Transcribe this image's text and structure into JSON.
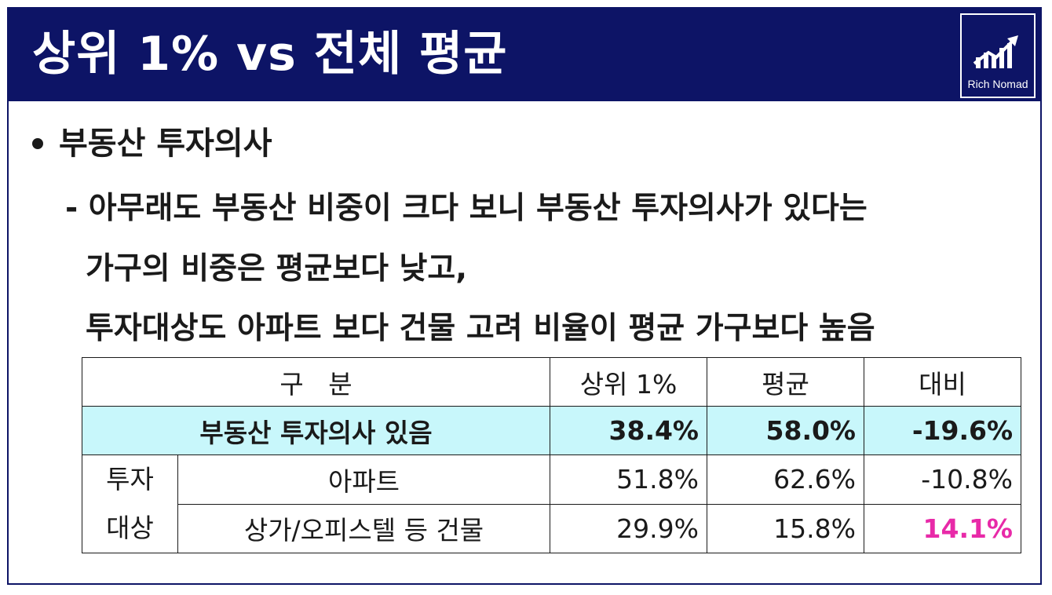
{
  "header": {
    "title": "상위 1% vs 전체 평균"
  },
  "logo": {
    "text": "Rich Nomad",
    "icon": "chart-arrow-icon"
  },
  "bullet": {
    "heading": "부동산 투자의사"
  },
  "body": {
    "line1": "- 아무래도 부동산 비중이 크다 보니 부동산 투자의사가 있다는",
    "line2": "가구의 비중은 평균보다 낮고,",
    "line3": "투자대상도 아파트 보다 건물 고려 비율이 평균 가구보다 높음"
  },
  "table": {
    "headers": [
      "구   분",
      "상위 1%",
      "평균",
      "대비"
    ],
    "highlight_row": {
      "label": "부동산 투자의사 있음",
      "top1": "38.4%",
      "avg": "58.0%",
      "diff": "-19.6%"
    },
    "group_label_line1": "투자",
    "group_label_line2": "대상",
    "rows": [
      {
        "label": "아파트",
        "top1": "51.8%",
        "avg": "62.6%",
        "diff": "-10.8%"
      },
      {
        "label": "상가/오피스텔 등 건물",
        "top1": "29.9%",
        "avg": "15.8%",
        "diff": "14.1%"
      }
    ]
  },
  "colors": {
    "navy": "#0d1466",
    "highlight": "#c8f7fb",
    "accent_pink": "#e82aa8"
  }
}
